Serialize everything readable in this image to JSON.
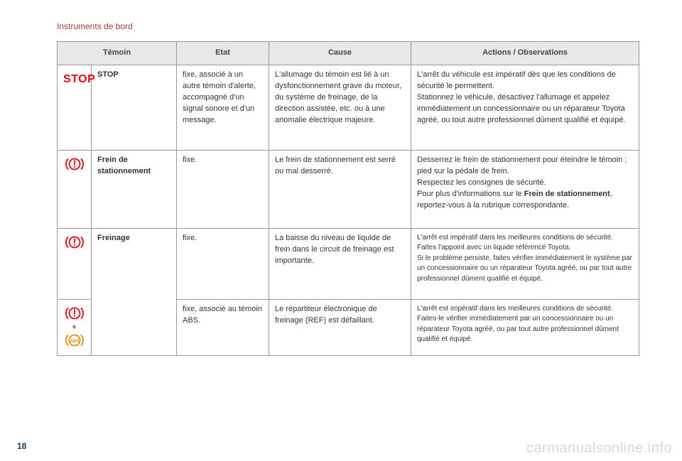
{
  "colors": {
    "accent_red": "#e30613",
    "section_title": "#a83a3a",
    "header_bg": "#e8e8e8",
    "border": "#999999",
    "text": "#333333",
    "page_num": "#1a3a6b",
    "watermark": "#d8d8d8",
    "abs_orange": "#e88b1a"
  },
  "section_title": "Instruments de bord",
  "page_number": "18",
  "watermark": "carmanualsonline.info",
  "table": {
    "headers": {
      "temoin": "Témoin",
      "etat": "Etat",
      "cause": "Cause",
      "actions": "Actions / Observations"
    },
    "rows": {
      "stop": {
        "icon_label": "STOP",
        "temoin": "STOP",
        "etat": "fixe, associé à un autre témoin d'alerte, accompagné d'un signal sonore et d'un message.",
        "cause": "L'allumage du témoin est lié à un dysfonctionnement grave du moteur, du système de freinage, de la direction assistée, etc. ou à une anomalie électrique majeure.",
        "actions": "L'arrêt du véhicule est impératif dès que les conditions de sécurité le permettent.\nStationnez le véhicule, désactivez l'allumage et appelez immédiatement un concessionnaire ou un réparateur Toyota agréé, ou tout autre professionnel dûment qualifié et équipé."
      },
      "parking_brake": {
        "temoin": "Frein de stationnement",
        "etat": "fixe.",
        "cause": "Le frein de stationnement est serré ou mal desserré.",
        "actions_pre": "Desserrez le frein de stationnement pour éteindre le témoin ; pied sur la pédale de frein.\nRespectez les consignes de sécurité.\nPour plus d'informations sur le ",
        "actions_bold": "Frein de stationnement",
        "actions_post": ", reportez-vous à la rubrique correspondante."
      },
      "braking": {
        "temoin": "Freinage",
        "etat": "fixe.",
        "cause": "La baisse du niveau de liquide de frein dans le circuit de freinage est importante.",
        "actions": "L'arrêt est impératif dans les meilleures conditions de sécurité.\nFaites l'appoint avec un liquide référencé Toyota.\nSi le problème persiste, faites vérifier immédiatement le système par un concessionnaire ou un réparateur Toyota agréé, ou par tout autre professionnel dûment qualifié et équipé."
      },
      "braking_abs": {
        "plus": "+",
        "etat": "fixe, associé au témoin ABS.",
        "cause": "Le répartiteur électronique de freinage (REF) est défaillant.",
        "actions": "L'arrêt est impératif dans les meilleures conditions de sécurité.\nFaites-le vérifier immédiatement par un concessionnaire ou un réparateur Toyota agréé, ou par tout autre professionnel dûment qualifié et équipé."
      }
    }
  }
}
